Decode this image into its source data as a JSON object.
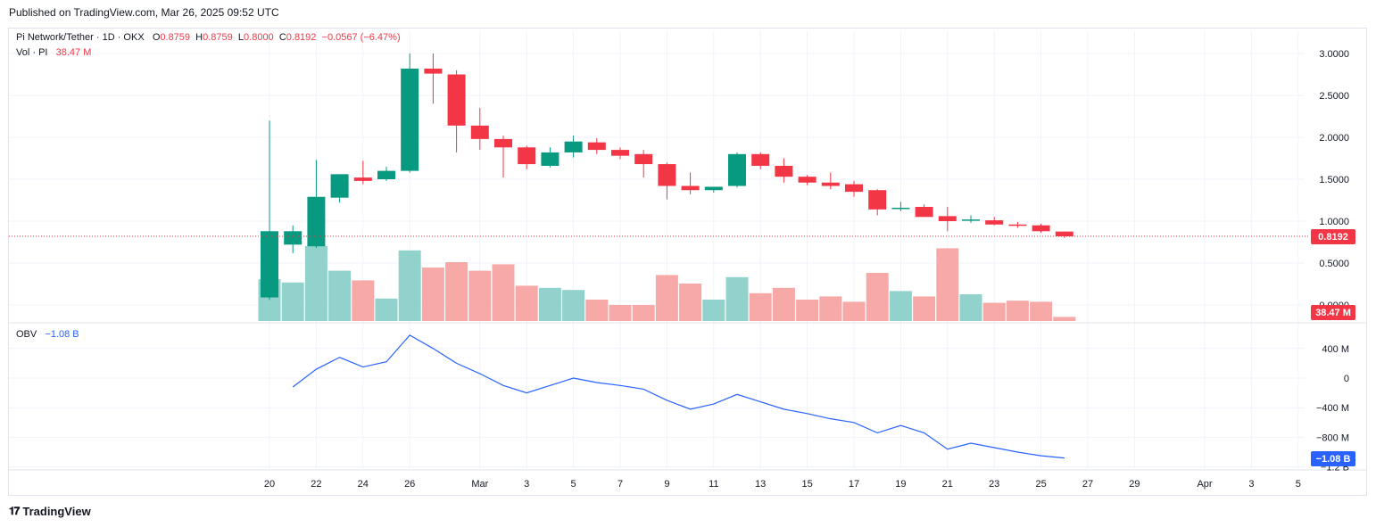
{
  "header": {
    "published": "Published on TradingView.com, Mar 26, 2025 09:52 UTC"
  },
  "legend": {
    "symbol": "Pi Network/Tether · 1D · OKX",
    "open_label": "O",
    "open": "0.8759",
    "high_label": "H",
    "high": "0.8759",
    "low_label": "L",
    "low": "0.8000",
    "close_label": "C",
    "close": "0.8192",
    "change": "−0.0567 (−6.47%)",
    "vol_label": "Vol · PI",
    "vol_value": "38.47 M",
    "obv_label": "OBV",
    "obv_value": "−1.08 B"
  },
  "price_badge": "0.8192",
  "volume_badge": "38.47 M",
  "obv_badge": "−1.08 B",
  "footer": {
    "brand": "TradingView",
    "logo_icon": "tradingview-logo-icon"
  },
  "colors": {
    "up": "#089981",
    "down": "#f23645",
    "vol_up": "#92d2cc",
    "vol_down": "#f7a9a7",
    "obv_line": "#2962ff",
    "grid": "#f0f3fa",
    "axis_text": "#131722"
  },
  "chart_data": [
    {
      "type": "candlestick",
      "title": "Pi Network/Tether · 1D · OKX",
      "x_tick_labels": [
        "20",
        "22",
        "24",
        "26",
        "Mar",
        "3",
        "5",
        "7",
        "9",
        "11",
        "13",
        "15",
        "17",
        "19",
        "21",
        "23",
        "25",
        "27",
        "29",
        "Apr",
        "3",
        "5"
      ],
      "y_tick_labels": [
        "3.0000",
        "2.5000",
        "2.0000",
        "1.5000",
        "1.0000",
        "0.5000",
        "0.0000"
      ],
      "ylim": [
        0,
        3.0
      ],
      "dates": [
        "Feb 20",
        "Feb 21",
        "Feb 22",
        "Feb 23",
        "Feb 24",
        "Feb 25",
        "Feb 26",
        "Feb 27",
        "Feb 28",
        "Mar 1",
        "Mar 2",
        "Mar 3",
        "Mar 4",
        "Mar 5",
        "Mar 6",
        "Mar 7",
        "Mar 8",
        "Mar 9",
        "Mar 10",
        "Mar 11",
        "Mar 12",
        "Mar 13",
        "Mar 14",
        "Mar 15",
        "Mar 16",
        "Mar 17",
        "Mar 18",
        "Mar 19",
        "Mar 20",
        "Mar 21",
        "Mar 22",
        "Mar 23",
        "Mar 24",
        "Mar 25",
        "Mar 26"
      ],
      "open": [
        0.09,
        0.72,
        0.7,
        1.28,
        1.52,
        1.5,
        1.6,
        2.82,
        2.75,
        2.14,
        1.98,
        1.88,
        1.66,
        1.82,
        1.94,
        1.85,
        1.8,
        1.68,
        1.42,
        1.37,
        1.42,
        1.8,
        1.66,
        1.53,
        1.46,
        1.44,
        1.37,
        1.15,
        1.17,
        1.06,
        1.02,
        1.01,
        0.96,
        0.95,
        0.8759
      ],
      "high": [
        2.2,
        0.95,
        1.73,
        1.56,
        1.72,
        1.65,
        3.0,
        3.0,
        2.8,
        2.35,
        2.02,
        1.9,
        1.88,
        2.02,
        1.99,
        1.88,
        1.85,
        1.7,
        1.58,
        1.4,
        1.82,
        1.82,
        1.75,
        1.55,
        1.58,
        1.48,
        1.38,
        1.23,
        1.2,
        1.17,
        1.07,
        1.05,
        0.99,
        0.97,
        0.8759
      ],
      "low": [
        0.06,
        0.62,
        0.68,
        1.22,
        1.44,
        1.48,
        1.58,
        2.4,
        1.82,
        1.85,
        1.52,
        1.62,
        1.64,
        1.76,
        1.8,
        1.74,
        1.52,
        1.26,
        1.32,
        1.34,
        1.4,
        1.62,
        1.46,
        1.43,
        1.38,
        1.29,
        1.07,
        1.12,
        1.07,
        0.88,
        0.98,
        0.95,
        0.92,
        0.86,
        0.8
      ],
      "close": [
        0.88,
        0.88,
        1.29,
        1.56,
        1.48,
        1.6,
        2.82,
        2.76,
        2.14,
        1.98,
        1.88,
        1.68,
        1.82,
        1.95,
        1.85,
        1.78,
        1.68,
        1.42,
        1.37,
        1.41,
        1.8,
        1.66,
        1.53,
        1.46,
        1.42,
        1.35,
        1.14,
        1.16,
        1.05,
        1.0,
        1.02,
        0.96,
        0.95,
        0.88,
        0.8192
      ]
    },
    {
      "type": "bar",
      "title": "Vol · PI",
      "series": [
        {
          "name": "Vol · PI",
          "values": [
            390,
            360,
            700,
            470,
            380,
            210,
            660,
            500,
            550,
            470,
            530,
            330,
            310,
            290,
            200,
            150,
            150,
            430,
            350,
            200,
            410,
            260,
            310,
            200,
            230,
            180,
            450,
            280,
            230,
            680,
            250,
            170,
            190,
            180,
            38.47
          ]
        }
      ],
      "unit": "M"
    },
    {
      "type": "line",
      "title": "OBV",
      "x_start_date": "Feb 21",
      "y_tick_labels": [
        "400 M",
        "0",
        "−400 M",
        "−800 M",
        "−1.2 B"
      ],
      "ylim": [
        -1.2,
        0.55
      ],
      "series": [
        {
          "name": "OBV",
          "values": [
            -0.12,
            0.12,
            0.28,
            0.15,
            0.22,
            0.58,
            0.4,
            0.2,
            0.06,
            -0.1,
            -0.2,
            -0.1,
            0.0,
            -0.06,
            -0.1,
            -0.15,
            -0.3,
            -0.42,
            -0.35,
            -0.22,
            -0.32,
            -0.42,
            -0.48,
            -0.55,
            -0.6,
            -0.74,
            -0.64,
            -0.74,
            -0.96,
            -0.88,
            -0.94,
            -1.0,
            -1.05,
            -1.08
          ]
        }
      ],
      "unit": "B"
    }
  ]
}
